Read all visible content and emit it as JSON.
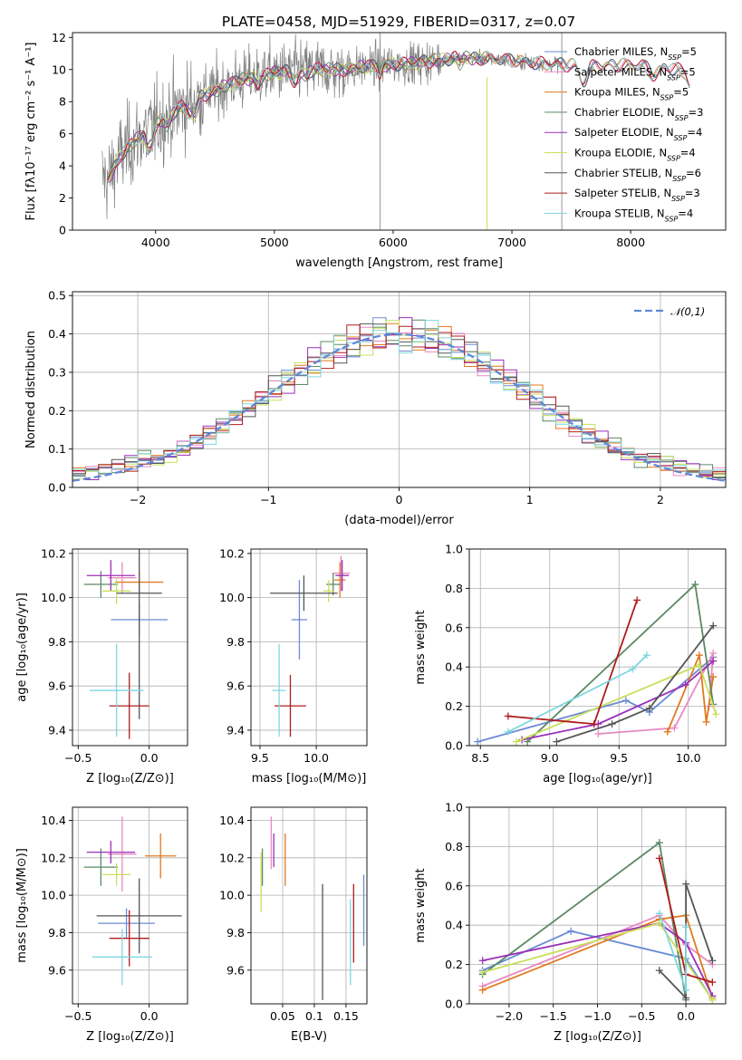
{
  "figure": {
    "title": "PLATE=0458, MJD=51929, FIBERID=0317, z=0.07"
  },
  "colors": {
    "data": "#808080",
    "normal": "#6088d8",
    "Chabrier MILES": "#6a8bd4",
    "Salpeter MILES": "#e78ac3",
    "Kroupa MILES": "#e07a1f",
    "Chabrier ELODIE": "#5c8a64",
    "Salpeter ELODIE": "#9b2fb8",
    "Kroupa ELODIE": "#c8e05a",
    "Chabrier STELIB": "#555555",
    "Salpeter STELIB": "#b01c1c",
    "Kroupa STELIB": "#7fd6e0"
  },
  "chart_data": [
    {
      "type": "line",
      "id": "spectrum",
      "title": "PLATE=0458, MJD=51929, FIBERID=0317, z=0.07",
      "xlabel": "wavelength [Angstrom, rest frame]",
      "ylabel": "Flux [fλ10⁻¹⁷ erg cm⁻² s⁻¹ A⁻¹]",
      "xlim": [
        3300,
        8800
      ],
      "ylim": [
        0,
        12.3
      ],
      "xticks": [
        4000,
        5000,
        6000,
        7000,
        8000
      ],
      "yticks": [
        0,
        2,
        4,
        6,
        8,
        10,
        12
      ],
      "legend": "right",
      "series": [
        {
          "name": "Chabrier MILES, N_SSP=5"
        },
        {
          "name": "Salpeter MILES, N_SSP=5"
        },
        {
          "name": "Kroupa MILES, N_SSP=5"
        },
        {
          "name": "Chabrier ELODIE, N_SSP=3"
        },
        {
          "name": "Salpeter ELODIE, N_SSP=4"
        },
        {
          "name": "Kroupa ELODIE, N_SSP=4"
        },
        {
          "name": "Chabrier STELIB, N_SSP=6"
        },
        {
          "name": "Salpeter STELIB, N_SSP=3"
        },
        {
          "name": "Kroupa STELIB, N_SSP=4"
        }
      ],
      "model_continuum": {
        "x": [
          3600,
          3700,
          3800,
          3900,
          4000,
          4200,
          4400,
          4700,
          5000,
          5300,
          5600,
          5900,
          6200,
          6500,
          6800,
          7100,
          7400
        ],
        "y": [
          3.2,
          4.6,
          5.4,
          6.0,
          6.6,
          7.6,
          8.4,
          9.3,
          9.8,
          10.0,
          10.0,
          10.3,
          10.4,
          10.7,
          10.7,
          10.5,
          10.3
        ]
      },
      "model_continuum_ext": {
        "x": [
          7400,
          7700,
          8000,
          8300,
          8500
        ],
        "y": [
          10.3,
          10.2,
          10.3,
          10.2,
          9.8
        ]
      },
      "data_range": [
        3550,
        7430
      ]
    },
    {
      "type": "histogram",
      "id": "residuals",
      "xlabel": "(data-model)/error",
      "ylabel": "Normed distribution",
      "xlim": [
        -2.5,
        2.5
      ],
      "ylim": [
        0,
        0.51
      ],
      "xticks": [
        -2,
        -1,
        0,
        1,
        2
      ],
      "yticks": [
        0.0,
        0.1,
        0.2,
        0.3,
        0.4,
        0.5
      ],
      "legend": "top-right",
      "reference": {
        "name": "𝒩(0,1)",
        "style": "dashed"
      },
      "bin_width": 0.1
    },
    {
      "type": "errorbar",
      "id": "age-vs-Z",
      "xlabel": "Z [log₁₀(Z/Z⊙)]",
      "ylabel": "age  [log₁₀(age/yr)]",
      "xlim": [
        -0.54,
        0.27
      ],
      "ylim": [
        9.33,
        10.22
      ],
      "xticks": [
        -0.5,
        0.0
      ],
      "yticks": [
        9.4,
        9.6,
        9.8,
        10.0,
        10.2
      ],
      "points": [
        {
          "model": "Chabrier MILES",
          "x": -0.07,
          "y": 9.9,
          "xerr": 0.2,
          "yerr": 0.07
        },
        {
          "model": "Salpeter MILES",
          "x": -0.19,
          "y": 10.09,
          "xerr": 0.1,
          "yerr": 0.07
        },
        {
          "model": "Kroupa MILES",
          "x": -0.07,
          "y": 10.07,
          "xerr": 0.17,
          "yerr": 0.05
        },
        {
          "model": "Chabrier ELODIE",
          "x": -0.34,
          "y": 10.06,
          "xerr": 0.12,
          "yerr": 0.06
        },
        {
          "model": "Salpeter ELODIE",
          "x": -0.27,
          "y": 10.1,
          "xerr": 0.17,
          "yerr": 0.07
        },
        {
          "model": "Kroupa ELODIE",
          "x": -0.23,
          "y": 10.03,
          "xerr": 0.1,
          "yerr": 0.06
        },
        {
          "model": "Chabrier STELIB",
          "x": -0.07,
          "y": 10.02,
          "xerr": 0.16,
          "yerr": 0.57
        },
        {
          "model": "Salpeter STELIB",
          "x": -0.14,
          "y": 9.51,
          "xerr": 0.14,
          "yerr": 0.15
        },
        {
          "model": "Kroupa STELIB",
          "x": -0.23,
          "y": 9.58,
          "xerr": 0.19,
          "yerr": 0.21
        }
      ]
    },
    {
      "type": "errorbar",
      "id": "age-vs-mass",
      "xlabel": "mass [log₁₀(M/M⊙)]",
      "ylabel": "",
      "xlim": [
        9.42,
        10.45
      ],
      "ylim": [
        9.33,
        10.22
      ],
      "xticks": [
        9.5,
        10.0
      ],
      "yticks": [
        9.4,
        9.6,
        9.8,
        10.0,
        10.2
      ],
      "points": [
        {
          "model": "Chabrier MILES",
          "x": 9.85,
          "y": 9.9,
          "xerr": 0.07,
          "yerr": 0.18
        },
        {
          "model": "Salpeter MILES",
          "x": 10.22,
          "y": 10.11,
          "xerr": 0.08,
          "yerr": 0.08
        },
        {
          "model": "Kroupa MILES",
          "x": 10.21,
          "y": 10.08,
          "xerr": 0.05,
          "yerr": 0.08
        },
        {
          "model": "Chabrier ELODIE",
          "x": 10.15,
          "y": 10.06,
          "xerr": 0.06,
          "yerr": 0.05
        },
        {
          "model": "Salpeter ELODIE",
          "x": 10.23,
          "y": 10.1,
          "xerr": 0.06,
          "yerr": 0.07
        },
        {
          "model": "Kroupa ELODIE",
          "x": 10.11,
          "y": 10.03,
          "xerr": 0.05,
          "yerr": 0.05
        },
        {
          "model": "Chabrier STELIB",
          "x": 9.89,
          "y": 10.02,
          "xerr": 0.3,
          "yerr": 0.08
        },
        {
          "model": "Salpeter STELIB",
          "x": 9.77,
          "y": 9.51,
          "xerr": 0.14,
          "yerr": 0.14
        },
        {
          "model": "Kroupa STELIB",
          "x": 9.67,
          "y": 9.58,
          "xerr": 0.06,
          "yerr": 0.21
        }
      ]
    },
    {
      "type": "line",
      "id": "mass-weight-vs-age",
      "xlabel": "age  [log₁₀(age/yr)]",
      "ylabel": "mass weight",
      "xlim": [
        8.42,
        10.27
      ],
      "ylim": [
        0,
        1
      ],
      "xticks": [
        8.5,
        9.0,
        9.5,
        10.0
      ],
      "yticks": [
        0.0,
        0.2,
        0.4,
        0.6,
        0.8,
        1.0
      ],
      "series": [
        {
          "model": "Chabrier MILES",
          "x": [
            8.48,
            9.55,
            9.72,
            10.18
          ],
          "y": [
            0.02,
            0.23,
            0.17,
            0.45
          ]
        },
        {
          "model": "Salpeter MILES",
          "x": [
            9.35,
            9.9,
            10.18,
            10.15
          ],
          "y": [
            0.06,
            0.09,
            0.47,
            0.2
          ]
        },
        {
          "model": "Kroupa MILES",
          "x": [
            9.85,
            10.08,
            10.13,
            10.18
          ],
          "y": [
            0.07,
            0.46,
            0.12,
            0.35
          ]
        },
        {
          "model": "Chabrier ELODIE",
          "x": [
            8.84,
            10.05,
            10.18
          ],
          "y": [
            0.02,
            0.82,
            0.21
          ]
        },
        {
          "model": "Salpeter ELODIE",
          "x": [
            8.8,
            9.35,
            9.98,
            10.18
          ],
          "y": [
            0.03,
            0.11,
            0.31,
            0.43
          ]
        },
        {
          "model": "Kroupa ELODIE",
          "x": [
            8.76,
            10.08,
            10.2
          ],
          "y": [
            0.02,
            0.41,
            0.16
          ]
        },
        {
          "model": "Chabrier STELIB",
          "x": [
            9.05,
            9.45,
            9.72,
            10.18
          ],
          "y": [
            0.02,
            0.11,
            0.19,
            0.61
          ]
        },
        {
          "model": "Salpeter STELIB",
          "x": [
            8.7,
            9.32,
            9.63
          ],
          "y": [
            0.15,
            0.11,
            0.74
          ]
        },
        {
          "model": "Kroupa STELIB",
          "x": [
            8.7,
            9.6,
            9.7
          ],
          "y": [
            0.07,
            0.39,
            0.46
          ]
        }
      ]
    },
    {
      "type": "errorbar",
      "id": "mass-vs-Z",
      "xlabel": "Z [log₁₀(Z/Z⊙)]",
      "ylabel": "mass [log₁₀(M/M⊙)]",
      "xlim": [
        -0.54,
        0.27
      ],
      "ylim": [
        9.42,
        10.47
      ],
      "xticks": [
        -0.5,
        0.0
      ],
      "yticks": [
        9.6,
        9.8,
        10.0,
        10.2,
        10.4
      ],
      "points": [
        {
          "model": "Chabrier MILES",
          "x": -0.16,
          "y": 9.85,
          "xerr": 0.2,
          "yerr": 0.08
        },
        {
          "model": "Salpeter MILES",
          "x": -0.19,
          "y": 10.22,
          "xerr": 0.1,
          "yerr": 0.2
        },
        {
          "model": "Kroupa MILES",
          "x": 0.08,
          "y": 10.21,
          "xerr": 0.11,
          "yerr": 0.12
        },
        {
          "model": "Chabrier ELODIE",
          "x": -0.34,
          "y": 10.15,
          "xerr": 0.12,
          "yerr": 0.1
        },
        {
          "model": "Salpeter ELODIE",
          "x": -0.27,
          "y": 10.23,
          "xerr": 0.17,
          "yerr": 0.06
        },
        {
          "model": "Kroupa ELODIE",
          "x": -0.23,
          "y": 10.11,
          "xerr": 0.1,
          "yerr": 0.06
        },
        {
          "model": "Chabrier STELIB",
          "x": -0.07,
          "y": 9.89,
          "xerr": 0.3,
          "yerr": 0.2
        },
        {
          "model": "Salpeter STELIB",
          "x": -0.14,
          "y": 9.77,
          "xerr": 0.14,
          "yerr": 0.15
        },
        {
          "model": "Kroupa STELIB",
          "x": -0.19,
          "y": 9.67,
          "xerr": 0.21,
          "yerr": 0.15
        }
      ]
    },
    {
      "type": "errorbar",
      "id": "mass-vs-ebv",
      "xlabel": "E(B-V)",
      "ylabel": "",
      "xlim": [
        0.0,
        0.183
      ],
      "ylim": [
        9.42,
        10.47
      ],
      "xticks": [
        0.05,
        0.1,
        0.15
      ],
      "yticks": [
        9.6,
        9.8,
        10.0,
        10.2,
        10.4
      ],
      "points": [
        {
          "model": "Chabrier MILES",
          "x": 0.178,
          "y": 9.92,
          "yerr": 0.19
        },
        {
          "model": "Salpeter MILES",
          "x": 0.032,
          "y": 10.28,
          "yerr": 0.14
        },
        {
          "model": "Kroupa MILES",
          "x": 0.054,
          "y": 10.19,
          "yerr": 0.14
        },
        {
          "model": "Chabrier ELODIE",
          "x": 0.018,
          "y": 10.15,
          "yerr": 0.1
        },
        {
          "model": "Salpeter ELODIE",
          "x": 0.036,
          "y": 10.24,
          "yerr": 0.09
        },
        {
          "model": "Kroupa ELODIE",
          "x": 0.016,
          "y": 10.07,
          "yerr": 0.16
        },
        {
          "model": "Chabrier STELIB",
          "x": 0.113,
          "y": 9.75,
          "yerr": 0.31
        },
        {
          "model": "Salpeter STELIB",
          "x": 0.162,
          "y": 9.85,
          "yerr": 0.21
        },
        {
          "model": "Kroupa STELIB",
          "x": 0.157,
          "y": 9.75,
          "yerr": 0.23
        }
      ]
    },
    {
      "type": "line",
      "id": "mass-weight-vs-Z",
      "xlabel": "Z [log₁₀(Z/Z⊙)]",
      "ylabel": "mass weight",
      "xlim": [
        -2.45,
        0.45
      ],
      "ylim": [
        0,
        1
      ],
      "xticks": [
        -2.0,
        -1.5,
        -1.0,
        -0.5,
        0.0
      ],
      "yticks": [
        0.0,
        0.2,
        0.4,
        0.6,
        0.8,
        1.0
      ],
      "series": [
        {
          "model": "Chabrier MILES",
          "x": [
            -2.3,
            -1.3,
            0.0,
            0.3
          ],
          "y": [
            0.17,
            0.37,
            0.23,
            0.02
          ]
        },
        {
          "model": "Salpeter MILES",
          "x": [
            -2.3,
            -0.3,
            0.0,
            0.3
          ],
          "y": [
            0.09,
            0.45,
            0.3,
            0.2
          ]
        },
        {
          "model": "Kroupa MILES",
          "x": [
            -2.3,
            -0.3,
            0.0,
            0.3
          ],
          "y": [
            0.07,
            0.43,
            0.45,
            0.03
          ]
        },
        {
          "model": "Chabrier ELODIE",
          "x": [
            -2.3,
            -0.3,
            0.0
          ],
          "y": [
            0.15,
            0.82,
            0.02
          ]
        },
        {
          "model": "Salpeter ELODIE",
          "x": [
            -2.3,
            -0.3,
            0.0,
            0.3
          ],
          "y": [
            0.22,
            0.41,
            0.31,
            0.04
          ]
        },
        {
          "model": "Kroupa ELODIE",
          "x": [
            -2.3,
            -0.3,
            0.3
          ],
          "y": [
            0.16,
            0.41,
            0.02
          ]
        },
        {
          "model": "Chabrier STELIB",
          "x": [
            -0.3,
            0.0,
            0.0,
            0.3
          ],
          "y": [
            0.17,
            0.03,
            0.61,
            0.22
          ]
        },
        {
          "model": "Salpeter STELIB",
          "x": [
            -0.3,
            0.0,
            0.3
          ],
          "y": [
            0.74,
            0.15,
            0.11
          ]
        },
        {
          "model": "Kroupa STELIB",
          "x": [
            -0.3,
            0.0,
            0.0
          ],
          "y": [
            0.46,
            0.07,
            0.39
          ]
        }
      ]
    }
  ]
}
